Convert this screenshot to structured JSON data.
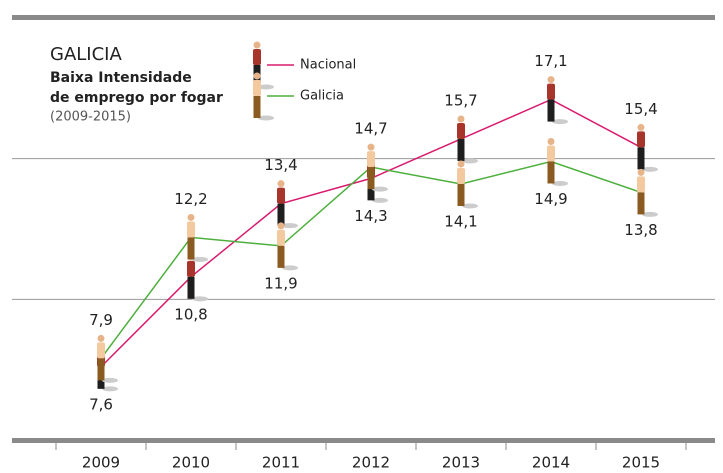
{
  "chart_data": {
    "type": "line",
    "title": "GALICIA",
    "subtitle": [
      "Baixa Intensidade",
      "de emprego por fogar"
    ],
    "period": "(2009-2015)",
    "categories": [
      "2009",
      "2010",
      "2011",
      "2012",
      "2013",
      "2014",
      "2015"
    ],
    "series": [
      {
        "name": "Nacional",
        "color": "#d81b6e",
        "values": [
          7.6,
          10.8,
          13.4,
          14.3,
          15.7,
          17.1,
          15.4
        ],
        "value_labels": [
          "7,6",
          "10,8",
          "13,4",
          "14,3",
          "15,7",
          "17,1",
          "15,4"
        ]
      },
      {
        "name": "Galicia",
        "color": "#4caf3c",
        "values": [
          7.9,
          12.2,
          11.9,
          14.7,
          14.1,
          14.9,
          13.8
        ],
        "value_labels": [
          "7,9",
          "12,2",
          "11,9",
          "14,7",
          "14,1",
          "14,9",
          "13,8"
        ]
      }
    ],
    "ylim": [
      5,
      20
    ],
    "grid_lines": [
      10,
      15
    ]
  }
}
